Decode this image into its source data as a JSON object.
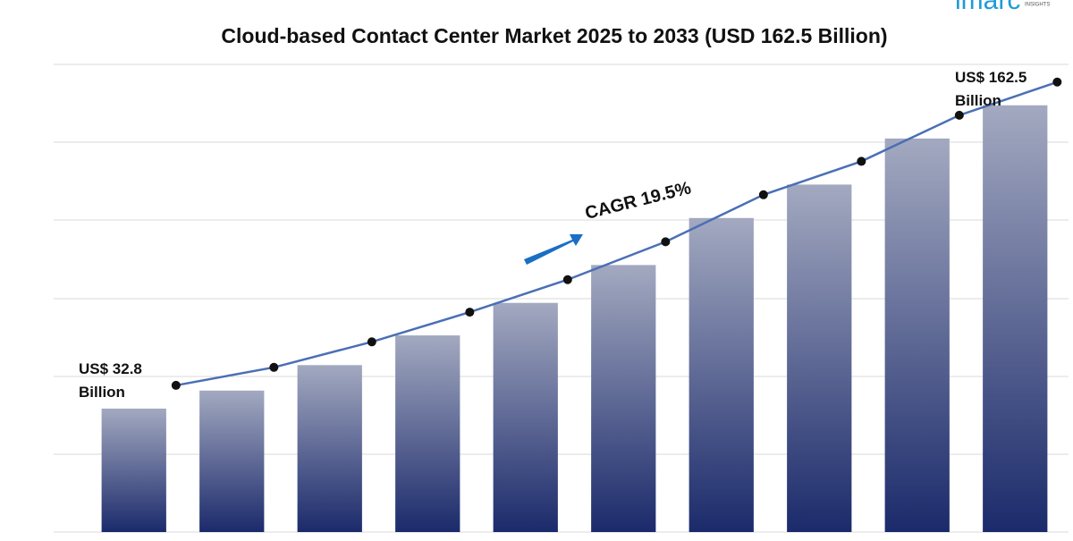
{
  "chart_data": {
    "type": "bar",
    "title": "Cloud-based Contact Center Market 2025 to 2033 (USD 162.5 Billion)",
    "categories": [
      null,
      null,
      null,
      null,
      null,
      null,
      null,
      null,
      null,
      null
    ],
    "values": [
      32.8,
      40.5,
      51.4,
      64.1,
      78.0,
      94.2,
      114.3,
      128.6,
      148.3,
      162.5
    ],
    "value_labels": [
      "US$ 32.8 Billion",
      null,
      null,
      null,
      null,
      null,
      null,
      null,
      null,
      "US$ 162.5 Billion"
    ],
    "color": "#1f2e6e",
    "line_color": "#4a6fb5",
    "ylim": [
      -20,
      180
    ],
    "annotation": "CAGR 19.5%",
    "logo": "imarc",
    "logo_sub": "INSIGHTS"
  }
}
